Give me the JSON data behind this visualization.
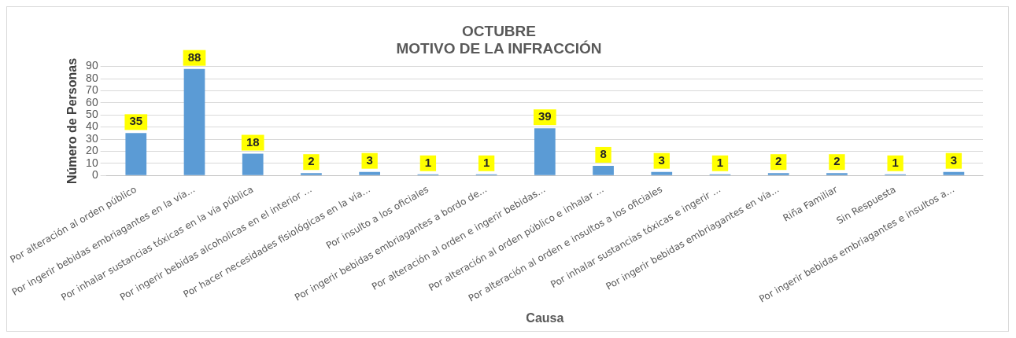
{
  "chart_data": {
    "type": "bar",
    "title": "OCTUBRE\nMOTIVO DE LA INFRACCIÓN",
    "xlabel": "Causa",
    "ylabel": "Número de Personas",
    "categories": [
      "Por alteración al orden público",
      "Por ingerir bebidas embriagantes en la vía...",
      "Por inhalar sustancias tóxicas en la vía pública",
      "Por ingerir bebidas alcoholicas en el interior ...",
      "Por hacer necesidades fisiológicas en la vía...",
      "Por insulto a los oficiales",
      "Por ingerir bebidas embriagantes a bordo de...",
      "Por alteración al orden e ingerir bebidas...",
      "Por alteración al orden público e inhalar ...",
      "Por alteración al orden e insultos a los oficiales",
      "Por inhalar sustancias tóxicas e ingerir ...",
      "Por ingerir bebidas embriagantes en vía...",
      "Riña Familiar",
      "Sin Respuesta",
      "Por ingerir bebidas embriagantes e insultos a..."
    ],
    "values": [
      35,
      88,
      18,
      2,
      3,
      1,
      1,
      39,
      8,
      3,
      1,
      2,
      2,
      1,
      3
    ],
    "color": "#5b9bd5",
    "ylim": [
      0,
      90
    ],
    "yticks": [
      0,
      10,
      20,
      30,
      40,
      50,
      60,
      70,
      80,
      90
    ],
    "grid": "y",
    "data_labels": true,
    "legend": false
  }
}
